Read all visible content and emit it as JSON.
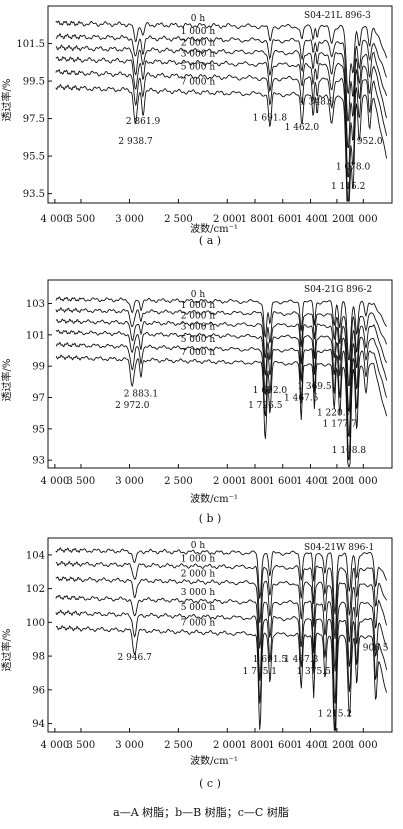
{
  "caption": "a—A 树脂；b—B 树脂；c—C 树脂",
  "chart_data": [
    {
      "type": "line",
      "panel_label": "( a )",
      "title": "S04-21L 896-3",
      "xlabel": "波数/cm⁻¹",
      "ylabel": "透过率/%",
      "x_ticks": [
        "4 000",
        "3 500",
        "3 000",
        "2 500",
        "2 000",
        "1 800",
        "1 600",
        "1 400",
        "1 200",
        "1 000"
      ],
      "y_ticks": [
        "101.5",
        "99.5",
        "97.5",
        "95.5",
        "93.5"
      ],
      "ylim": [
        93.0,
        103.5
      ],
      "series": [
        {
          "name": "0 h",
          "base": 102.6
        },
        {
          "name": "1 000 h",
          "base": 101.9
        },
        {
          "name": "2 000 h",
          "base": 101.3
        },
        {
          "name": "3 000 h",
          "base": 100.7
        },
        {
          "name": "5 000 h",
          "base": 100.0
        },
        {
          "name": "7 000 h",
          "base": 99.2
        }
      ],
      "annotations": [
        "2 861.9",
        "2 938.7",
        "1 691.8",
        "1 348.9",
        "1 462.0",
        "952.0",
        "1 078.0",
        "1 115.2"
      ]
    },
    {
      "type": "line",
      "panel_label": "( b )",
      "title": "S04-21G 896-2",
      "xlabel": "波数/cm⁻¹",
      "ylabel": "透过率/%",
      "x_ticks": [
        "4 000",
        "3 500",
        "3 000",
        "2 500",
        "2 000",
        "1 800",
        "1 600",
        "1 400",
        "1 200",
        "1 000"
      ],
      "y_ticks": [
        "103",
        "101",
        "99",
        "97",
        "95",
        "93"
      ],
      "ylim": [
        92.5,
        104.5
      ],
      "series": [
        {
          "name": "0 h",
          "base": 103.3
        },
        {
          "name": "1 000 h",
          "base": 102.6
        },
        {
          "name": "2 000 h",
          "base": 101.9
        },
        {
          "name": "3 000 h",
          "base": 101.2
        },
        {
          "name": "5 000 h",
          "base": 100.4
        },
        {
          "name": "7 000 h",
          "base": 99.6
        }
      ],
      "annotations": [
        "2 883.1",
        "2 972.0",
        "1 692.0",
        "1 726.5",
        "1 369.5",
        "1 467.5",
        "1 220.7",
        "1 177.7",
        "1 108.8"
      ]
    },
    {
      "type": "line",
      "panel_label": "( c )",
      "title": "S04-21W 896-1",
      "xlabel": "波数/cm⁻¹",
      "ylabel": "透过率/%",
      "x_ticks": [
        "4 000",
        "3 500",
        "3 000",
        "2 500",
        "2 000",
        "1 800",
        "1 600",
        "1 400",
        "1 200",
        "1 000"
      ],
      "y_ticks": [
        "104",
        "102",
        "100",
        "98",
        "96",
        "94"
      ],
      "ylim": [
        93.5,
        105.0
      ],
      "series": [
        {
          "name": "0 h",
          "base": 104.3
        },
        {
          "name": "1 000 h",
          "base": 103.5
        },
        {
          "name": "2 000 h",
          "base": 102.6
        },
        {
          "name": "3 000 h",
          "base": 101.5
        },
        {
          "name": "5 000 h",
          "base": 100.6
        },
        {
          "name": "7 000 h",
          "base": 99.7
        }
      ],
      "annotations": [
        "2 946.7",
        "1 691.5",
        "1 765.1",
        "1 467.3",
        "1 375.5",
        "906.5",
        "1 215.2"
      ]
    }
  ]
}
